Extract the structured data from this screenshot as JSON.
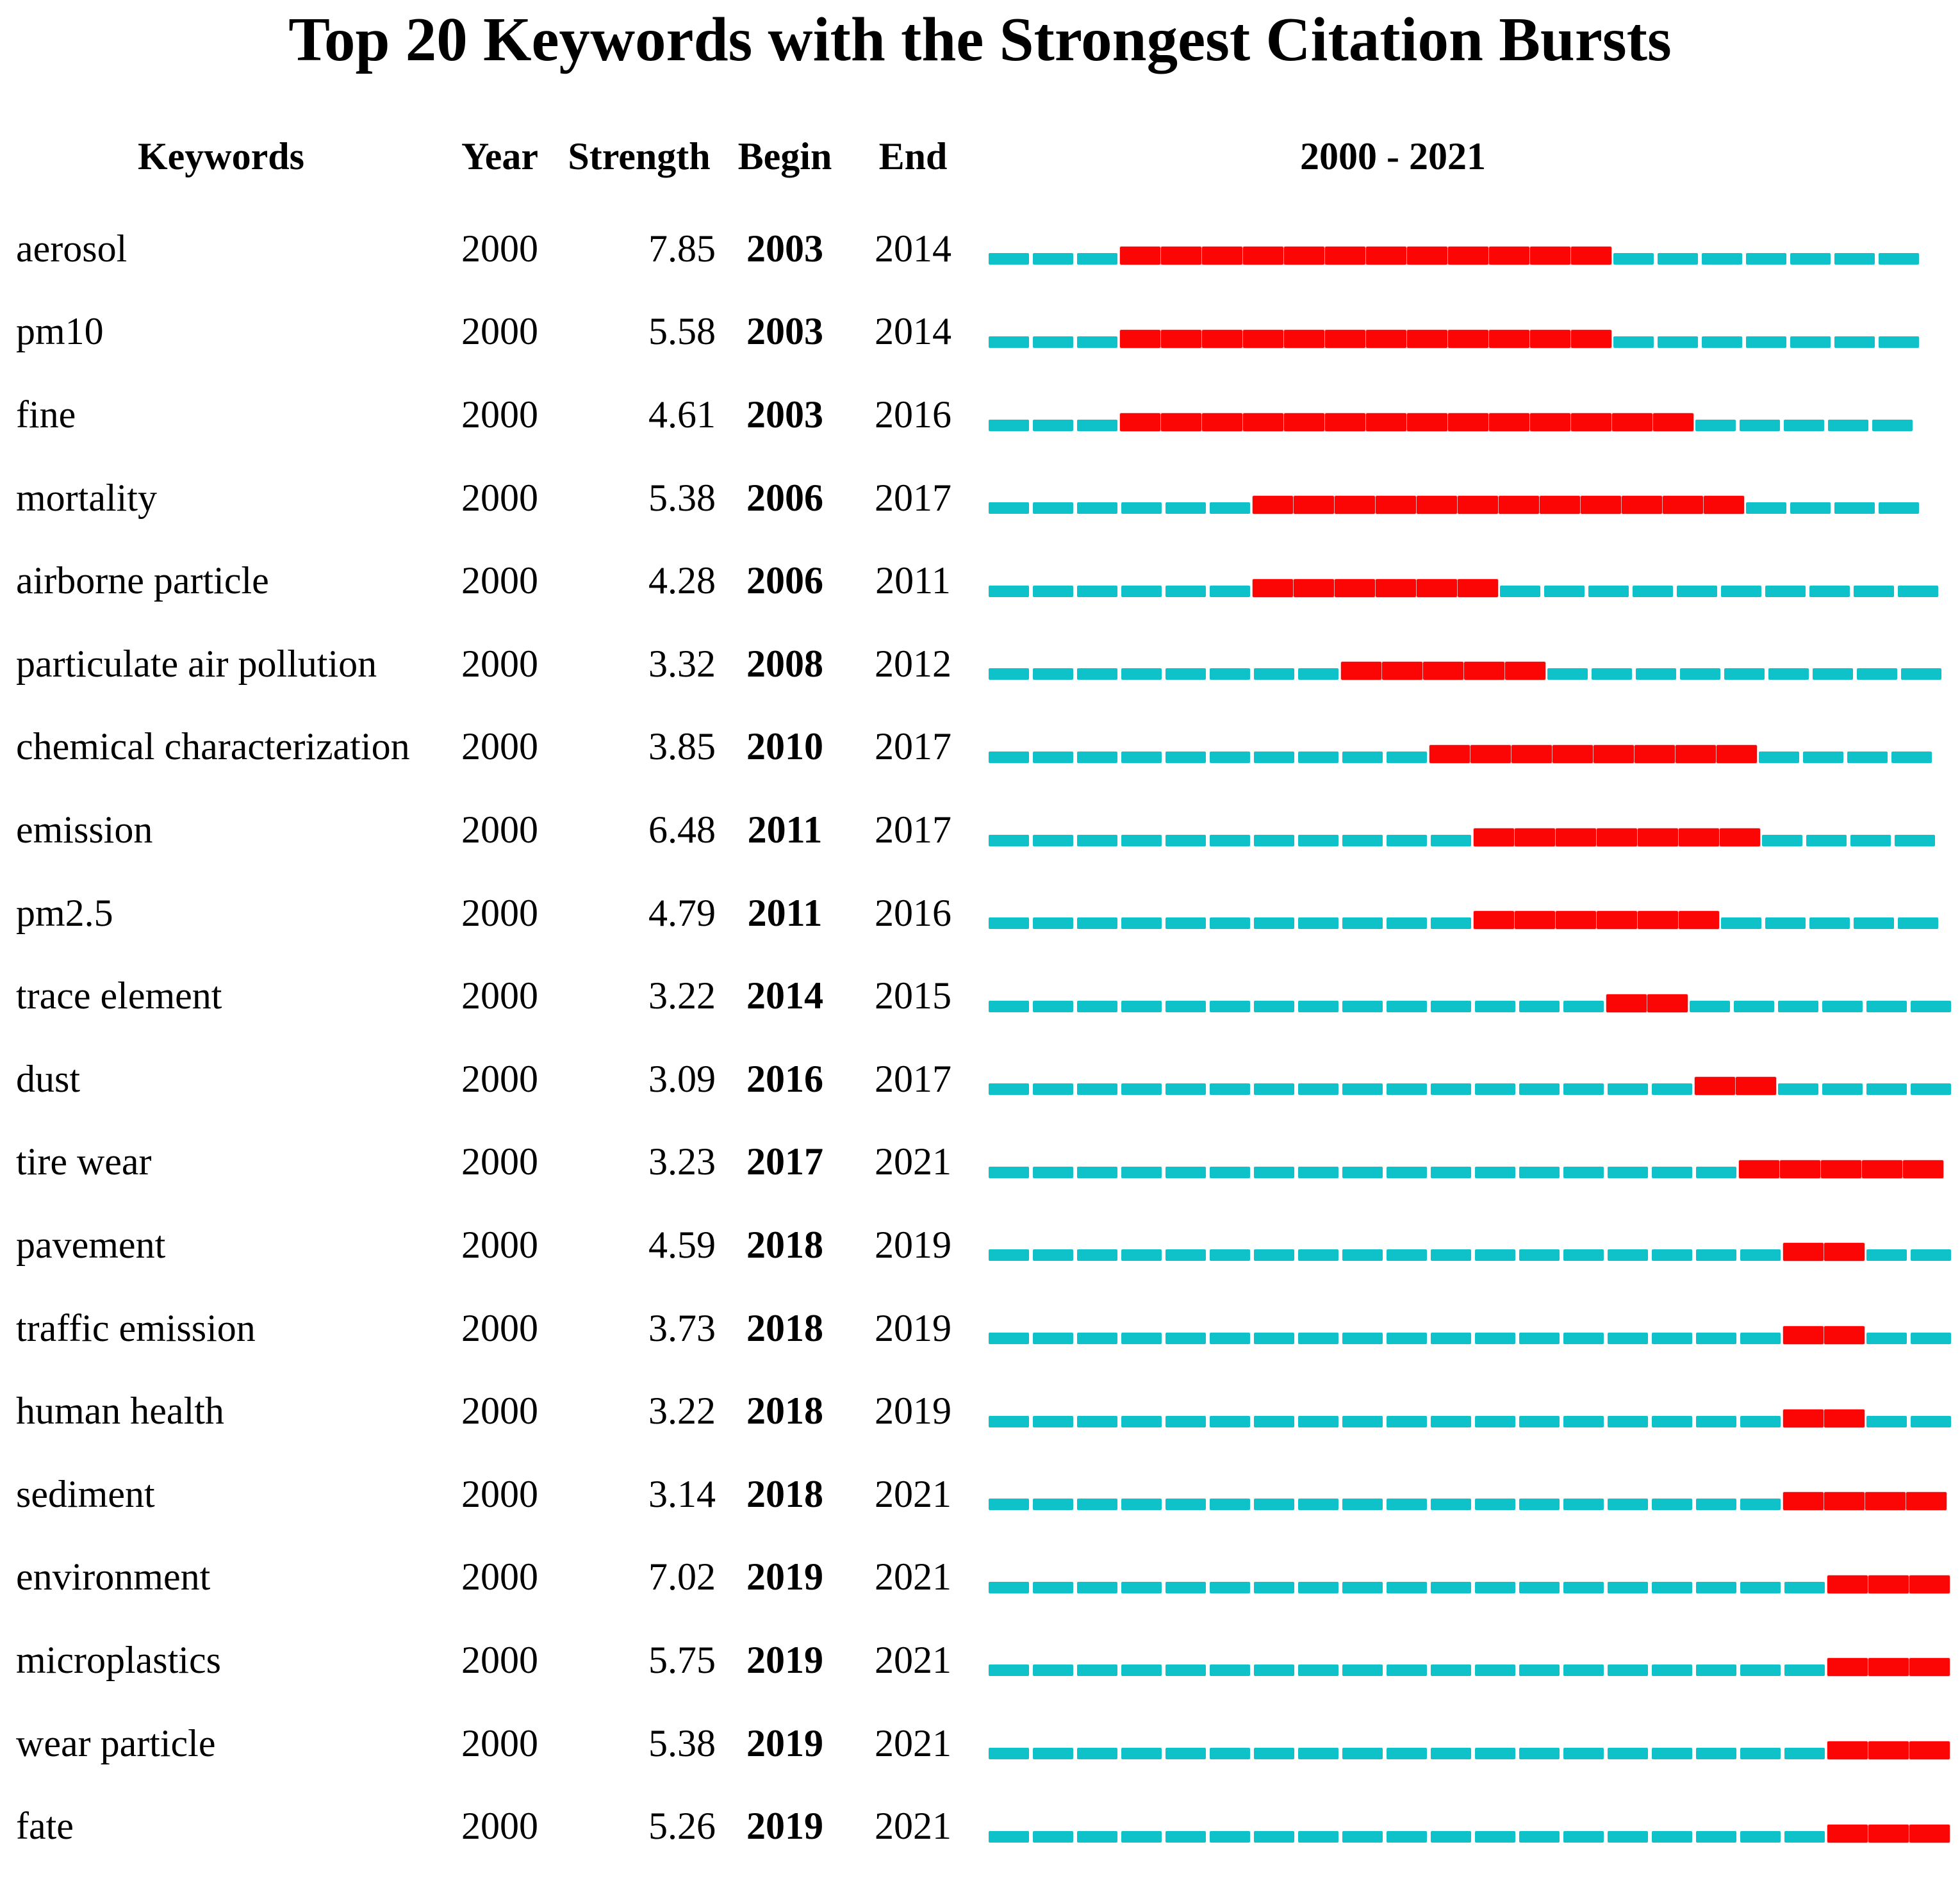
{
  "chart_data": {
    "type": "table",
    "title": "Top 20 Keywords with the Strongest Citation Bursts",
    "columns": [
      "Keywords",
      "Year",
      "Strength",
      "Begin",
      "End"
    ],
    "timeline": {
      "label": "2000 - 2021",
      "start": 2000,
      "end": 2021,
      "base_color": "#0fc2c9",
      "burst_color": "#fb0505",
      "legend_note": "cyan = year in range, red = burst period (Begin-End inclusive)"
    },
    "rows": [
      {
        "keyword": "aerosol",
        "year": "2000",
        "strength": "7.85",
        "begin": 2003,
        "end": 2014
      },
      {
        "keyword": "pm10",
        "year": "2000",
        "strength": "5.58",
        "begin": 2003,
        "end": 2014
      },
      {
        "keyword": "fine",
        "year": "2000",
        "strength": "4.61",
        "begin": 2003,
        "end": 2016
      },
      {
        "keyword": "mortality",
        "year": "2000",
        "strength": "5.38",
        "begin": 2006,
        "end": 2017
      },
      {
        "keyword": "airborne particle",
        "year": "2000",
        "strength": "4.28",
        "begin": 2006,
        "end": 2011
      },
      {
        "keyword": "particulate air pollution",
        "year": "2000",
        "strength": "3.32",
        "begin": 2008,
        "end": 2012
      },
      {
        "keyword": "chemical characterization",
        "year": "2000",
        "strength": "3.85",
        "begin": 2010,
        "end": 2017
      },
      {
        "keyword": "emission",
        "year": "2000",
        "strength": "6.48",
        "begin": 2011,
        "end": 2017
      },
      {
        "keyword": "pm2.5",
        "year": "2000",
        "strength": "4.79",
        "begin": 2011,
        "end": 2016
      },
      {
        "keyword": "trace element",
        "year": "2000",
        "strength": "3.22",
        "begin": 2014,
        "end": 2015
      },
      {
        "keyword": "dust",
        "year": "2000",
        "strength": "3.09",
        "begin": 2016,
        "end": 2017
      },
      {
        "keyword": "tire wear",
        "year": "2000",
        "strength": "3.23",
        "begin": 2017,
        "end": 2021
      },
      {
        "keyword": "pavement",
        "year": "2000",
        "strength": "4.59",
        "begin": 2018,
        "end": 2019
      },
      {
        "keyword": "traffic emission",
        "year": "2000",
        "strength": "3.73",
        "begin": 2018,
        "end": 2019
      },
      {
        "keyword": "human health",
        "year": "2000",
        "strength": "3.22",
        "begin": 2018,
        "end": 2019
      },
      {
        "keyword": "sediment",
        "year": "2000",
        "strength": "3.14",
        "begin": 2018,
        "end": 2021
      },
      {
        "keyword": "environment",
        "year": "2000",
        "strength": "7.02",
        "begin": 2019,
        "end": 2021
      },
      {
        "keyword": "microplastics",
        "year": "2000",
        "strength": "5.75",
        "begin": 2019,
        "end": 2021
      },
      {
        "keyword": "wear particle",
        "year": "2000",
        "strength": "5.38",
        "begin": 2019,
        "end": 2021
      },
      {
        "keyword": "fate",
        "year": "2000",
        "strength": "5.26",
        "begin": 2019,
        "end": 2021
      }
    ]
  }
}
